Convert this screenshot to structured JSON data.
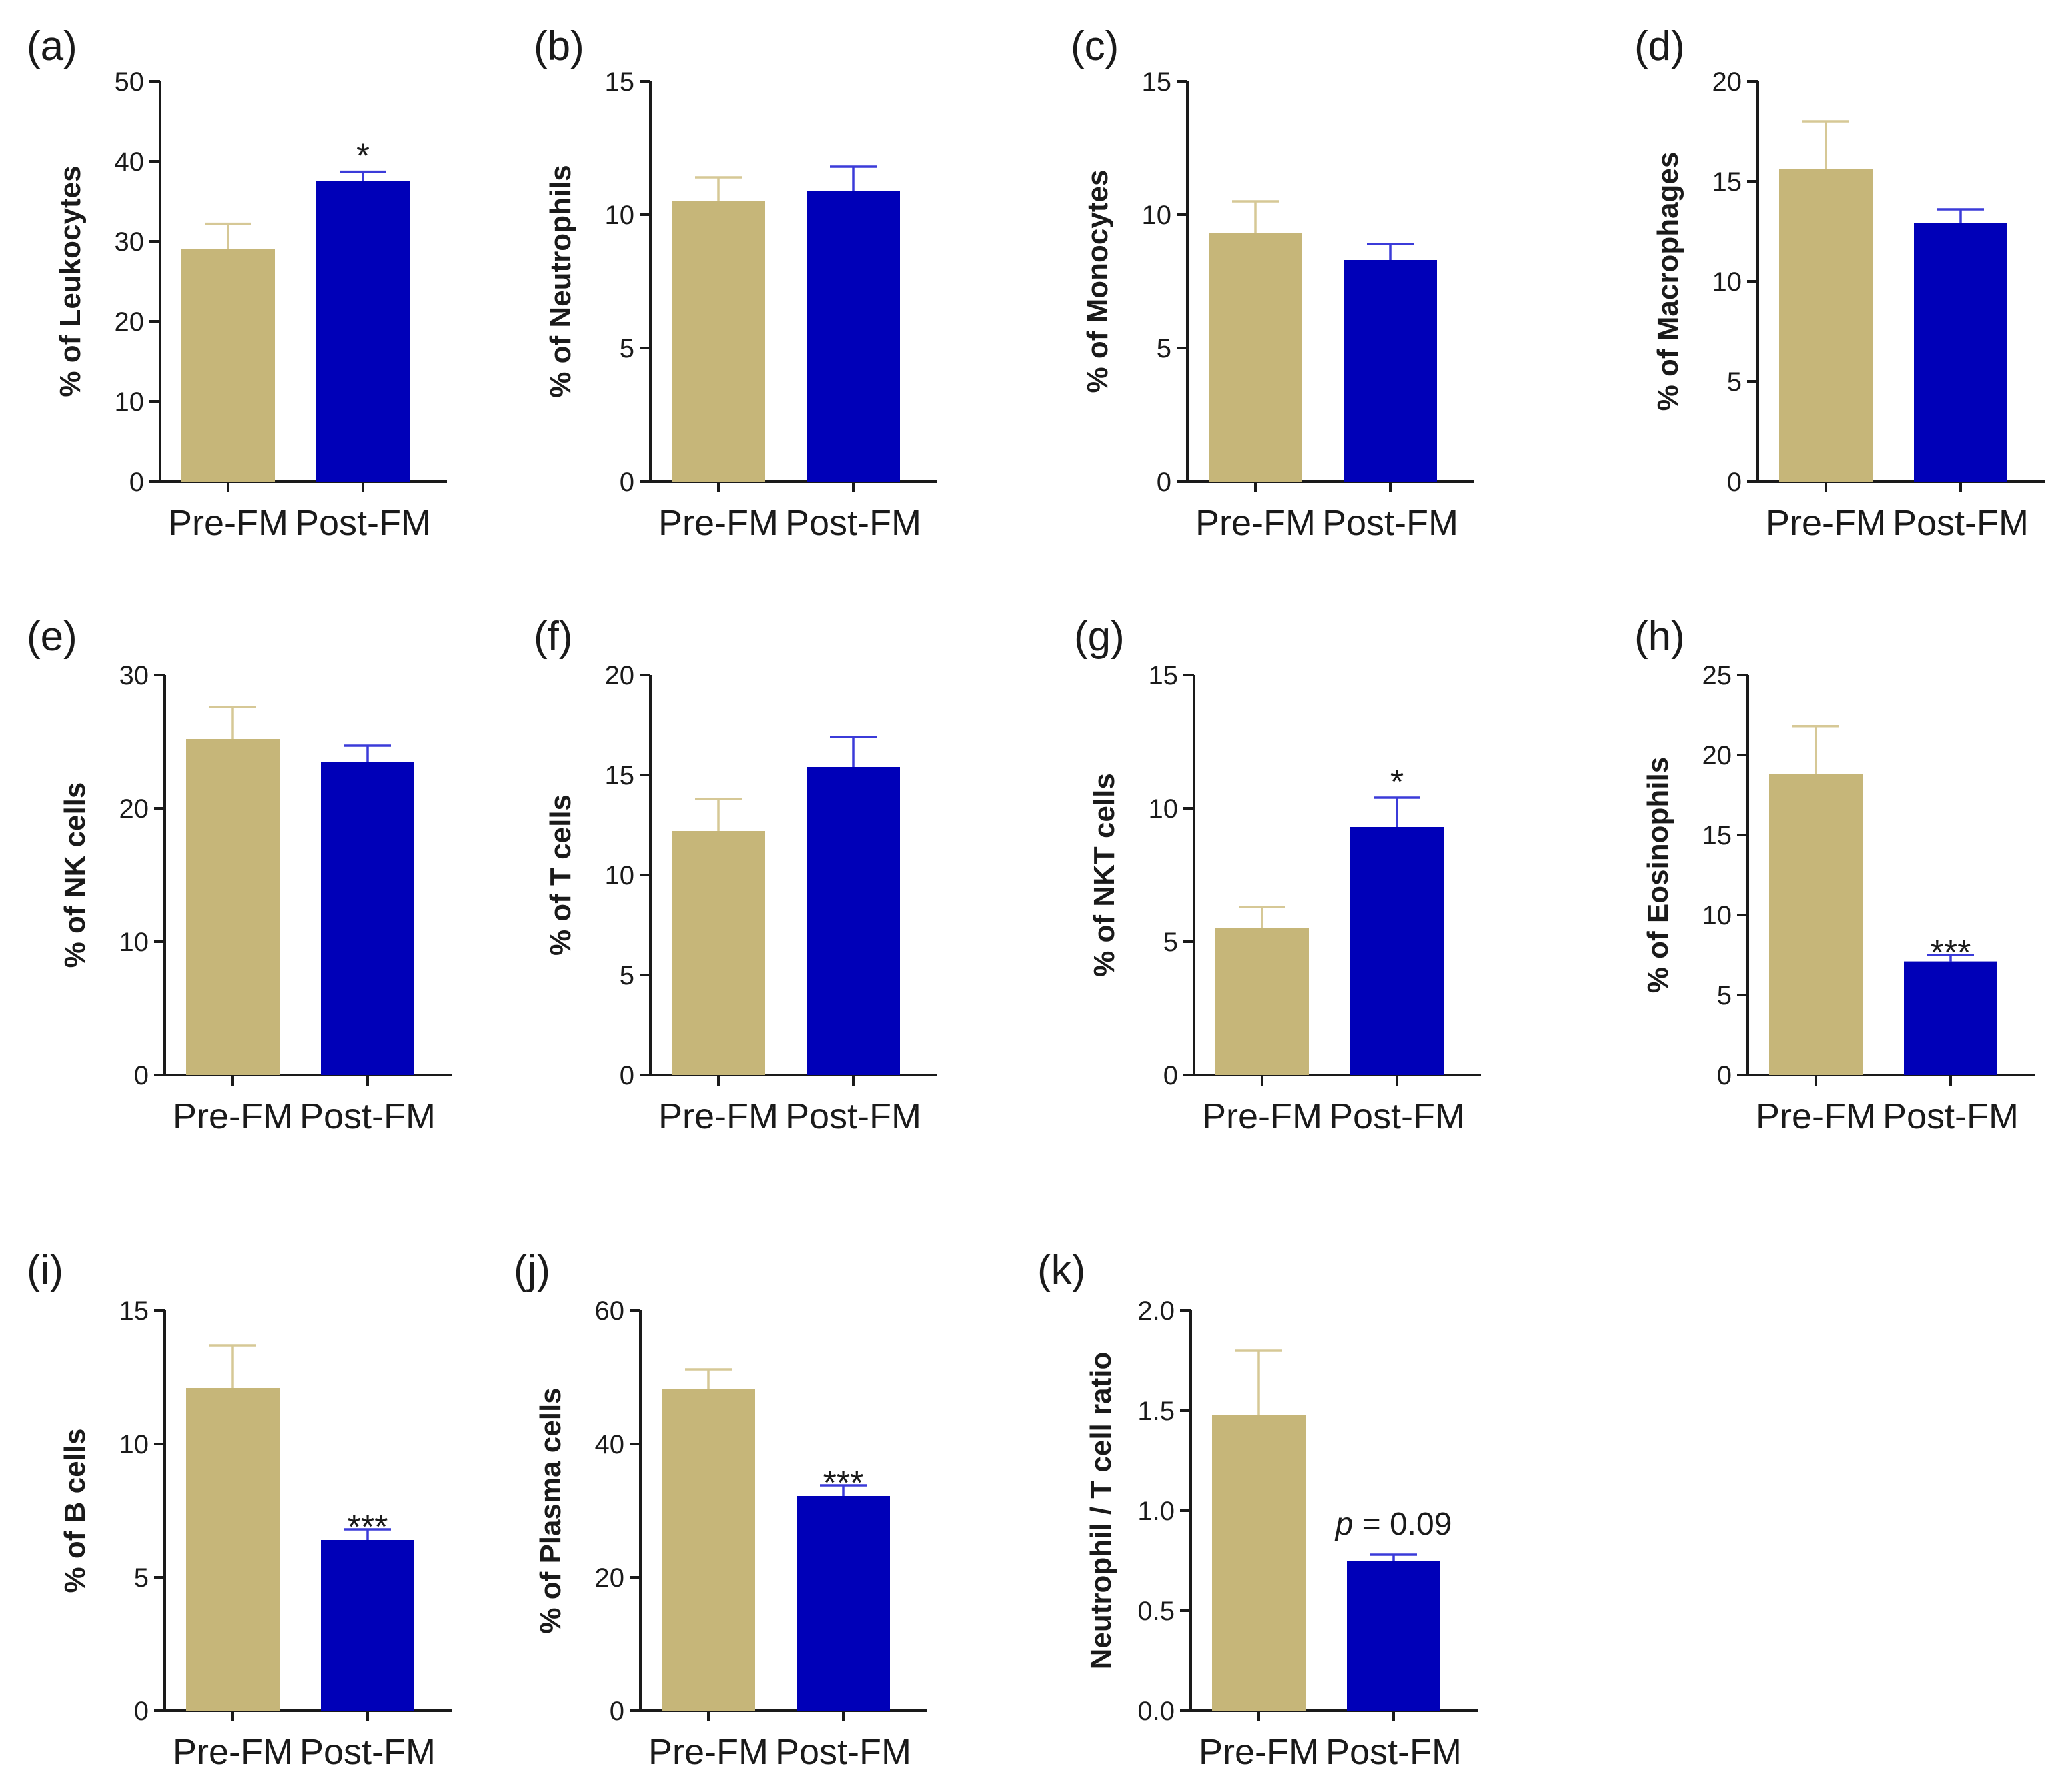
{
  "colors": {
    "pre": "#c6b679",
    "post": "#0000b8",
    "axis": "#1a1a1a"
  },
  "chart_data": [
    {
      "type": "bar",
      "panel": "(a)",
      "ylabel": "% of Leukocytes",
      "categories": [
        "Pre-FM",
        "Post-FM"
      ],
      "values": [
        29,
        37.5
      ],
      "errors": [
        3.2,
        1.2
      ],
      "ylim": [
        0,
        50
      ],
      "yticks": [
        0,
        10,
        20,
        30,
        40,
        50
      ],
      "ytick_labels": [
        "0",
        "10",
        "20",
        "30",
        "40",
        "50"
      ],
      "significance": [
        null,
        "*"
      ]
    },
    {
      "type": "bar",
      "panel": "(b)",
      "ylabel": "% of Neutrophils",
      "categories": [
        "Pre-FM",
        "Post-FM"
      ],
      "values": [
        10.5,
        10.9
      ],
      "errors": [
        0.9,
        0.9
      ],
      "ylim": [
        0,
        15
      ],
      "yticks": [
        0,
        5,
        10,
        15
      ],
      "ytick_labels": [
        "0",
        "5",
        "10",
        "15"
      ],
      "significance": [
        null,
        null
      ]
    },
    {
      "type": "bar",
      "panel": "(c)",
      "ylabel": "% of Monocytes",
      "categories": [
        "Pre-FM",
        "Post-FM"
      ],
      "values": [
        9.3,
        8.3
      ],
      "errors": [
        1.2,
        0.6
      ],
      "ylim": [
        0,
        15
      ],
      "yticks": [
        0,
        5,
        10,
        15
      ],
      "ytick_labels": [
        "0",
        "5",
        "10",
        "15"
      ],
      "significance": [
        null,
        null
      ]
    },
    {
      "type": "bar",
      "panel": "(d)",
      "ylabel": "% of Macrophages",
      "categories": [
        "Pre-FM",
        "Post-FM"
      ],
      "values": [
        15.6,
        12.9
      ],
      "errors": [
        2.4,
        0.7
      ],
      "ylim": [
        0,
        20
      ],
      "yticks": [
        0,
        5,
        10,
        15,
        20
      ],
      "ytick_labels": [
        "0",
        "5",
        "10",
        "15",
        "20"
      ],
      "significance": [
        null,
        null
      ]
    },
    {
      "type": "bar",
      "panel": "(e)",
      "ylabel": "% of NK cells",
      "categories": [
        "Pre-FM",
        "Post-FM"
      ],
      "values": [
        25.2,
        23.5
      ],
      "errors": [
        2.4,
        1.2
      ],
      "ylim": [
        0,
        30
      ],
      "yticks": [
        0,
        10,
        20,
        30
      ],
      "ytick_labels": [
        "0",
        "10",
        "20",
        "30"
      ],
      "significance": [
        null,
        null
      ]
    },
    {
      "type": "bar",
      "panel": "(f)",
      "ylabel": "% of T cells",
      "categories": [
        "Pre-FM",
        "Post-FM"
      ],
      "values": [
        12.2,
        15.4
      ],
      "errors": [
        1.6,
        1.5
      ],
      "ylim": [
        0,
        20
      ],
      "yticks": [
        0,
        5,
        10,
        15,
        20
      ],
      "ytick_labels": [
        "0",
        "5",
        "10",
        "15",
        "20"
      ],
      "significance": [
        null,
        null
      ]
    },
    {
      "type": "bar",
      "panel": "(g)",
      "ylabel": "% of NKT cells",
      "categories": [
        "Pre-FM",
        "Post-FM"
      ],
      "values": [
        5.5,
        9.3
      ],
      "errors": [
        0.8,
        1.1
      ],
      "ylim": [
        0,
        15
      ],
      "yticks": [
        0,
        5,
        10,
        15
      ],
      "ytick_labels": [
        "0",
        "5",
        "10",
        "15"
      ],
      "significance": [
        null,
        "*"
      ]
    },
    {
      "type": "bar",
      "panel": "(h)",
      "ylabel": "% of Eosinophils",
      "categories": [
        "Pre-FM",
        "Post-FM"
      ],
      "values": [
        18.8,
        7.1
      ],
      "errors": [
        3.0,
        0.4
      ],
      "ylim": [
        0,
        25
      ],
      "yticks": [
        0,
        5,
        10,
        15,
        20,
        25
      ],
      "ytick_labels": [
        "0",
        "5",
        "10",
        "15",
        "20",
        "25"
      ],
      "significance": [
        null,
        "***"
      ]
    },
    {
      "type": "bar",
      "panel": "(i)",
      "ylabel": "% of B cells",
      "categories": [
        "Pre-FM",
        "Post-FM"
      ],
      "values": [
        12.1,
        6.4
      ],
      "errors": [
        1.6,
        0.4
      ],
      "ylim": [
        0,
        15
      ],
      "yticks": [
        0,
        5,
        10,
        15
      ],
      "ytick_labels": [
        "0",
        "5",
        "10",
        "15"
      ],
      "significance": [
        null,
        "***"
      ]
    },
    {
      "type": "bar",
      "panel": "(j)",
      "ylabel": "% of Plasma cells",
      "categories": [
        "Pre-FM",
        "Post-FM"
      ],
      "values": [
        48.2,
        32.2
      ],
      "errors": [
        3.0,
        1.6
      ],
      "ylim": [
        0,
        60
      ],
      "yticks": [
        0,
        20,
        40,
        60
      ],
      "ytick_labels": [
        "0",
        "20",
        "40",
        "60"
      ],
      "significance": [
        null,
        "***"
      ]
    },
    {
      "type": "bar",
      "panel": "(k)",
      "ylabel": "Neutrophil / T cell ratio",
      "categories": [
        "Pre-FM",
        "Post-FM"
      ],
      "values": [
        1.48,
        0.75
      ],
      "errors": [
        0.32,
        0.03
      ],
      "ylim": [
        0,
        2.0
      ],
      "yticks": [
        0,
        0.5,
        1.0,
        1.5,
        2.0
      ],
      "ytick_labels": [
        "0.0",
        "0.5",
        "1.0",
        "1.5",
        "2.0"
      ],
      "significance": [
        null,
        null
      ],
      "annotation": {
        "prefix": "p",
        "text": " = 0.09"
      }
    }
  ]
}
